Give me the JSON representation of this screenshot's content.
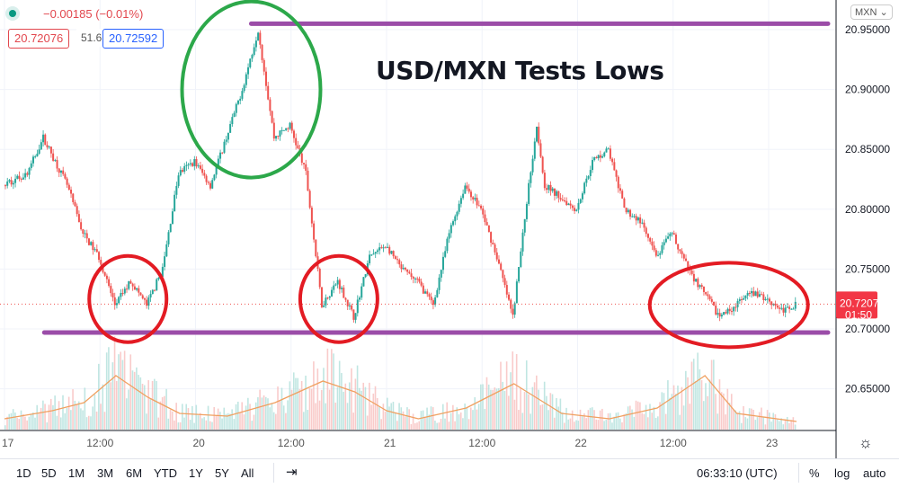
{
  "header": {
    "change": "−0.00185 (−0.01%)",
    "bid": "20.72076",
    "spread": "51.6",
    "ask": "20.72592",
    "currency": "MXN ⌄"
  },
  "annotation_title": "USD/MXN Tests Lows",
  "last_price_label": "20.72076",
  "countdown": "01:50",
  "bottom": {
    "ranges": [
      "1D",
      "5D",
      "1M",
      "3M",
      "6M",
      "YTD",
      "1Y",
      "5Y",
      "All"
    ],
    "time": "06:33:10 (UTC)",
    "percent": "%",
    "log": "log",
    "auto": "auto"
  },
  "colors": {
    "up": "#26a69a",
    "down": "#ef5350",
    "ellipse_red": "#e31b23",
    "ellipse_green": "#2ca84a",
    "level": "#9b4da8",
    "vol_ma": "#f0a060"
  },
  "chart_data": {
    "type": "candlestick",
    "title": "USD/MXN Tests Lows",
    "x_unit": "hours since 17 00:00 (session time)",
    "x_ticks": [
      {
        "h": 0,
        "label": "17"
      },
      {
        "h": 12,
        "label": "12:00"
      },
      {
        "h": 24,
        "label": "20"
      },
      {
        "h": 36,
        "label": "12:00"
      },
      {
        "h": 48,
        "label": "21"
      },
      {
        "h": 60,
        "label": "12:00"
      },
      {
        "h": 72,
        "label": "22"
      },
      {
        "h": 84,
        "label": "12:00"
      },
      {
        "h": 96,
        "label": "23"
      }
    ],
    "y_ticks": [
      "20.95000",
      "20.90000",
      "20.85000",
      "20.80000",
      "20.75000",
      "20.70000",
      "20.65000"
    ],
    "ylim": [
      20.615,
      20.975
    ],
    "close_path": [
      [
        0,
        20.82
      ],
      [
        3,
        20.83
      ],
      [
        5,
        20.86
      ],
      [
        8,
        20.82
      ],
      [
        10,
        20.78
      ],
      [
        12,
        20.76
      ],
      [
        14,
        20.72
      ],
      [
        16,
        20.74
      ],
      [
        18,
        20.72
      ],
      [
        20,
        20.75
      ],
      [
        22,
        20.83
      ],
      [
        24,
        20.84
      ],
      [
        26,
        20.82
      ],
      [
        28,
        20.86
      ],
      [
        30,
        20.9
      ],
      [
        32,
        20.95
      ],
      [
        34,
        20.86
      ],
      [
        36,
        20.87
      ],
      [
        38,
        20.83
      ],
      [
        40,
        20.72
      ],
      [
        42,
        20.74
      ],
      [
        44,
        20.71
      ],
      [
        46,
        20.76
      ],
      [
        48,
        20.77
      ],
      [
        50,
        20.75
      ],
      [
        52,
        20.74
      ],
      [
        54,
        20.72
      ],
      [
        56,
        20.78
      ],
      [
        58,
        20.82
      ],
      [
        60,
        20.8
      ],
      [
        62,
        20.76
      ],
      [
        64,
        20.71
      ],
      [
        66,
        20.82
      ],
      [
        67,
        20.87
      ],
      [
        68,
        20.82
      ],
      [
        70,
        20.81
      ],
      [
        72,
        20.8
      ],
      [
        74,
        20.84
      ],
      [
        76,
        20.85
      ],
      [
        78,
        20.8
      ],
      [
        80,
        20.79
      ],
      [
        82,
        20.76
      ],
      [
        84,
        20.78
      ],
      [
        86,
        20.75
      ],
      [
        88,
        20.73
      ],
      [
        90,
        20.71
      ],
      [
        92,
        20.72
      ],
      [
        94,
        20.73
      ],
      [
        96,
        20.725
      ],
      [
        98,
        20.715
      ],
      [
        99.5,
        20.72076
      ]
    ],
    "volume_ma_path": [
      [
        0,
        0.2
      ],
      [
        6,
        0.35
      ],
      [
        10,
        0.5
      ],
      [
        14,
        1.0
      ],
      [
        18,
        0.6
      ],
      [
        22,
        0.3
      ],
      [
        28,
        0.25
      ],
      [
        34,
        0.5
      ],
      [
        40,
        0.9
      ],
      [
        44,
        0.7
      ],
      [
        48,
        0.35
      ],
      [
        52,
        0.2
      ],
      [
        58,
        0.4
      ],
      [
        64,
        0.85
      ],
      [
        70,
        0.3
      ],
      [
        76,
        0.2
      ],
      [
        82,
        0.4
      ],
      [
        88,
        1.0
      ],
      [
        92,
        0.3
      ],
      [
        99.5,
        0.15
      ]
    ],
    "levels": [
      {
        "price": 20.955,
        "from_h": 31,
        "to_h": 104
      },
      {
        "price": 20.697,
        "from_h": 5,
        "to_h": 104
      }
    ],
    "ellipses": [
      {
        "color": "green",
        "h": 31,
        "price": 20.9
      },
      {
        "color": "red",
        "h": 15.5,
        "price": 20.725
      },
      {
        "color": "red",
        "h": 42,
        "price": 20.725
      },
      {
        "color": "red",
        "h": 91,
        "price": 20.72
      }
    ]
  }
}
